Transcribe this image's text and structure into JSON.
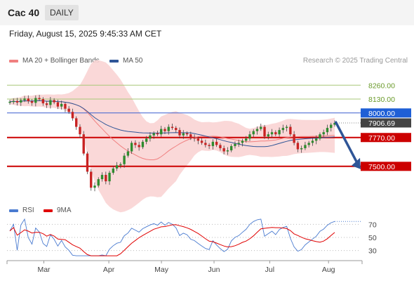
{
  "header": {
    "title": "Cac 40",
    "period": "DAILY"
  },
  "datetime": "Friday, August 15, 2025 9:45:33 AM CET",
  "legend": {
    "bb": {
      "label": "MA 20 + Bollinger Bands",
      "color": "#f08080"
    },
    "ma50": {
      "label": "MA 50",
      "color": "#2f5597"
    },
    "rsi": {
      "label": "RSI",
      "color": "#4a7bd0"
    },
    "rsi_ma": {
      "label": "9MA",
      "color": "#e00000"
    }
  },
  "research": "Research © 2025 Trading Central",
  "chart_data": [
    {
      "type": "candlestick",
      "x_labels": [
        "Mar",
        "Apr",
        "May",
        "Jun",
        "Jul",
        "Aug"
      ],
      "ylim": [
        7150,
        8400
      ],
      "levels": [
        {
          "value": 8260.0,
          "label": "8260.00",
          "style": "green-line"
        },
        {
          "value": 8130.0,
          "label": "8130.00",
          "style": "green-line"
        },
        {
          "value": 8000.0,
          "label": "8000.00",
          "style": "blue-box"
        },
        {
          "value": 7906.69,
          "label": "7906.69",
          "style": "dark-box"
        },
        {
          "value": 7770.0,
          "label": "7770.00",
          "style": "red-box"
        },
        {
          "value": 7500.0,
          "label": "7500.00",
          "style": "red-box"
        }
      ],
      "closes": [
        8105,
        8112,
        8098,
        8120,
        8135,
        8110,
        8095,
        8140,
        8130,
        8090,
        8075,
        8120,
        8100,
        8060,
        8085,
        8040,
        8010,
        7950,
        7870,
        7800,
        7620,
        7450,
        7300,
        7320,
        7380,
        7420,
        7360,
        7440,
        7480,
        7510,
        7520,
        7600,
        7640,
        7720,
        7700,
        7680,
        7730,
        7760,
        7790,
        7810,
        7800,
        7850,
        7830,
        7870,
        7860,
        7840,
        7790,
        7810,
        7800,
        7770,
        7760,
        7740,
        7720,
        7700,
        7690,
        7730,
        7700,
        7670,
        7640,
        7650,
        7690,
        7710,
        7720,
        7740,
        7760,
        7800,
        7830,
        7850,
        7870,
        7780,
        7800,
        7820,
        7800,
        7840,
        7860,
        7870,
        7800,
        7720,
        7660,
        7670,
        7700,
        7720,
        7740,
        7760,
        7800,
        7820,
        7860,
        7890,
        7907
      ],
      "indicators": [
        "MA 20",
        "Bollinger Bands",
        "MA 50"
      ]
    },
    {
      "type": "line",
      "series": [
        {
          "name": "RSI"
        },
        {
          "name": "9MA"
        }
      ],
      "y_ticks": [
        70,
        50,
        30
      ]
    }
  ]
}
